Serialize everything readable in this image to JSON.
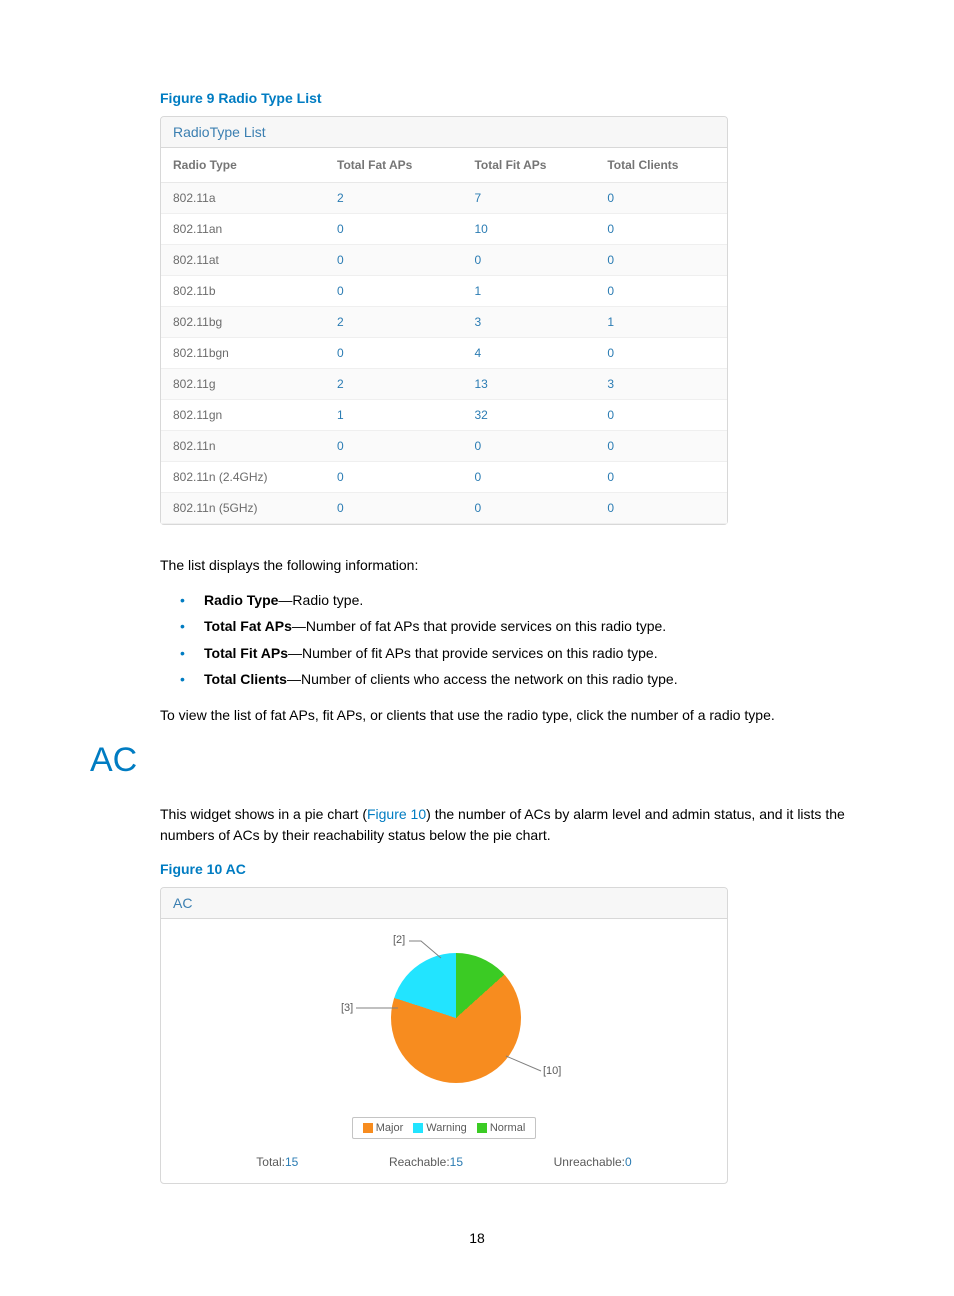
{
  "figure9": {
    "caption": "Figure 9 Radio Type List",
    "panel_title": "RadioType List",
    "columns": [
      "Radio Type",
      "Total Fat APs",
      "Total Fit APs",
      "Total Clients"
    ],
    "rows": [
      [
        "802.11a",
        "2",
        "7",
        "0"
      ],
      [
        "802.11an",
        "0",
        "10",
        "0"
      ],
      [
        "802.11at",
        "0",
        "0",
        "0"
      ],
      [
        "802.11b",
        "0",
        "1",
        "0"
      ],
      [
        "802.11bg",
        "2",
        "3",
        "1"
      ],
      [
        "802.11bgn",
        "0",
        "4",
        "0"
      ],
      [
        "802.11g",
        "2",
        "13",
        "3"
      ],
      [
        "802.11gn",
        "1",
        "32",
        "0"
      ],
      [
        "802.11n",
        "0",
        "0",
        "0"
      ],
      [
        "802.11n (2.4GHz)",
        "0",
        "0",
        "0"
      ],
      [
        "802.11n (5GHz)",
        "0",
        "0",
        "0"
      ]
    ]
  },
  "desc": {
    "intro": "The list displays the following information:",
    "items": [
      {
        "term": "Radio Type",
        "text": "—Radio type."
      },
      {
        "term": "Total Fat APs",
        "text": "—Number of fat APs that provide services on this radio type."
      },
      {
        "term": "Total Fit APs",
        "text": "—Number of fit APs that provide services on this radio type."
      },
      {
        "term": "Total Clients",
        "text": "—Number of clients who access the network on this radio type."
      }
    ],
    "outro": "To view the list of fat APs, fit APs, or clients that use the radio type, click the number of a radio type."
  },
  "ac": {
    "section_title": "AC",
    "para_pre": "This widget shows in a pie chart (",
    "para_link": "Figure 10",
    "para_post": ") the number of ACs by alarm level and admin status, and it lists the numbers of ACs by their reachability status below the pie chart.",
    "caption": "Figure 10 AC",
    "panel_title": "AC",
    "pie": {
      "type": "pie",
      "slices": [
        {
          "label": "[10]",
          "value": 10,
          "color": "#f78c1f"
        },
        {
          "label": "[3]",
          "value": 3,
          "color": "#22e4ff"
        },
        {
          "label": "[2]",
          "value": 2,
          "color": "#3bcb24"
        }
      ],
      "background_color": "#ffffff",
      "label_fontsize": 11,
      "label_color": "#5a5a5a",
      "legend": [
        {
          "name": "Major",
          "color": "#f78c1f"
        },
        {
          "name": "Warning",
          "color": "#22e4ff"
        },
        {
          "name": "Normal",
          "color": "#3bcb24"
        }
      ]
    },
    "stats": {
      "total_label": "Total:",
      "total_value": "15",
      "reachable_label": "Reachable:",
      "reachable_value": "15",
      "unreachable_label": "Unreachable:",
      "unreachable_value": "0"
    }
  },
  "page_number": "18"
}
